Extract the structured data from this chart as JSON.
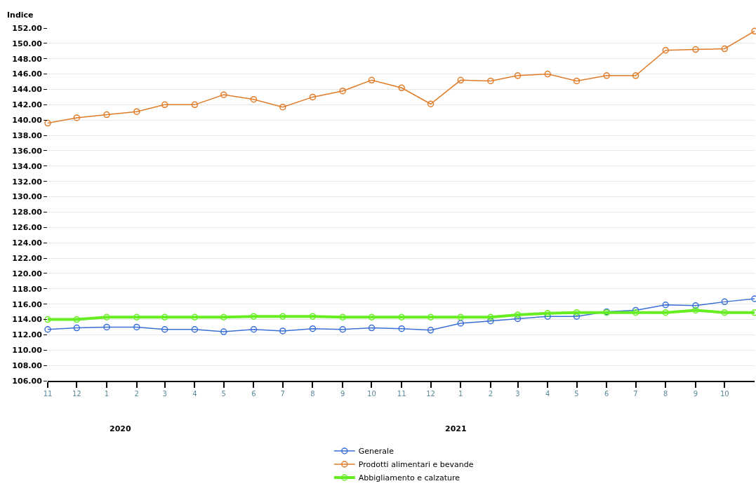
{
  "chart_data": {
    "type": "line",
    "ylabel": "Indice",
    "x": [
      "2019-11",
      "2019-12",
      "2020-01",
      "2020-02",
      "2020-03",
      "2020-04",
      "2020-05",
      "2020-06",
      "2020-07",
      "2020-08",
      "2020-09",
      "2020-10",
      "2020-11",
      "2020-12",
      "2021-01",
      "2021-02",
      "2021-03",
      "2021-04",
      "2021-05",
      "2021-06",
      "2021-07",
      "2021-08",
      "2021-09",
      "2021-10",
      "2021-11"
    ],
    "series": [
      {
        "name": "Generale",
        "color": "#3a6fd8",
        "values": [
          112.7,
          112.9,
          113.0,
          113.0,
          112.7,
          112.7,
          112.4,
          112.7,
          112.5,
          112.8,
          112.7,
          112.9,
          112.8,
          112.6,
          113.5,
          113.8,
          114.1,
          114.4,
          114.4,
          115.0,
          115.2,
          115.9,
          115.8,
          116.3,
          116.7
        ]
      },
      {
        "name": "Prodotti alimentari e bevande",
        "color": "#e07b28",
        "values": [
          139.6,
          140.3,
          140.7,
          141.1,
          142.0,
          142.0,
          143.3,
          142.7,
          141.7,
          143.0,
          143.8,
          145.2,
          144.2,
          142.1,
          145.2,
          145.1,
          145.8,
          146.0,
          145.1,
          145.8,
          145.8,
          149.1,
          149.2,
          149.3,
          151.6
        ]
      },
      {
        "name": "Abbigliamento e calzature",
        "color": "#66ee22",
        "values": [
          114.0,
          114.0,
          114.3,
          114.3,
          114.3,
          114.3,
          114.3,
          114.4,
          114.4,
          114.4,
          114.3,
          114.3,
          114.3,
          114.3,
          114.3,
          114.3,
          114.6,
          114.8,
          114.9,
          114.9,
          114.9,
          114.9,
          115.2,
          114.9,
          114.9
        ]
      }
    ],
    "xlim": [
      "2019-11",
      "2021-11"
    ],
    "xticks": [
      {
        "value": "2019-11",
        "label": "11"
      },
      {
        "value": "2019-12",
        "label": "12"
      },
      {
        "value": "2020-01",
        "label": "1"
      },
      {
        "value": "2020-02",
        "label": "2"
      },
      {
        "value": "2020-03",
        "label": "3"
      },
      {
        "value": "2020-04",
        "label": "4"
      },
      {
        "value": "2020-05",
        "label": "5"
      },
      {
        "value": "2020-06",
        "label": "6"
      },
      {
        "value": "2020-07",
        "label": "7"
      },
      {
        "value": "2020-08",
        "label": "8"
      },
      {
        "value": "2020-09",
        "label": "9"
      },
      {
        "value": "2020-10",
        "label": "10"
      },
      {
        "value": "2020-11",
        "label": "11"
      },
      {
        "value": "2020-12",
        "label": "12"
      },
      {
        "value": "2021-01",
        "label": "1"
      },
      {
        "value": "2021-02",
        "label": "2"
      },
      {
        "value": "2021-03",
        "label": "3"
      },
      {
        "value": "2021-04",
        "label": "4"
      },
      {
        "value": "2021-05",
        "label": "5"
      },
      {
        "value": "2021-06",
        "label": "6"
      },
      {
        "value": "2021-07",
        "label": "7"
      },
      {
        "value": "2021-08",
        "label": "8"
      },
      {
        "value": "2021-09",
        "label": "9"
      },
      {
        "value": "2021-10",
        "label": "10"
      }
    ],
    "ylim": [
      106,
      152
    ],
    "yticks": [
      {
        "value": 106,
        "label": "106.00"
      },
      {
        "value": 108,
        "label": "108.00"
      },
      {
        "value": 110,
        "label": "110.00"
      },
      {
        "value": 112,
        "label": "112.00"
      },
      {
        "value": 114,
        "label": "114.00"
      },
      {
        "value": 116,
        "label": "116.00"
      },
      {
        "value": 118,
        "label": "118.00"
      },
      {
        "value": 120,
        "label": "120.00"
      },
      {
        "value": 122,
        "label": "122.00"
      },
      {
        "value": 124,
        "label": "124.00"
      },
      {
        "value": 126,
        "label": "126.00"
      },
      {
        "value": 128,
        "label": "128.00"
      },
      {
        "value": 130,
        "label": "130.00"
      },
      {
        "value": 132,
        "label": "132.00"
      },
      {
        "value": 134,
        "label": "134.00"
      },
      {
        "value": 136,
        "label": "136.00"
      },
      {
        "value": 138,
        "label": "138.00"
      },
      {
        "value": 140,
        "label": "140.00"
      },
      {
        "value": 142,
        "label": "142.00"
      },
      {
        "value": 144,
        "label": "144.00"
      },
      {
        "value": 146,
        "label": "146.00"
      },
      {
        "value": 148,
        "label": "148.00"
      },
      {
        "value": 150,
        "label": "150.00"
      },
      {
        "value": 152,
        "label": "152.00"
      }
    ],
    "annotations": [
      "2020",
      "2021"
    ],
    "grid": "y",
    "legend": "bottom",
    "marker": "circle",
    "line_style": "solid"
  }
}
